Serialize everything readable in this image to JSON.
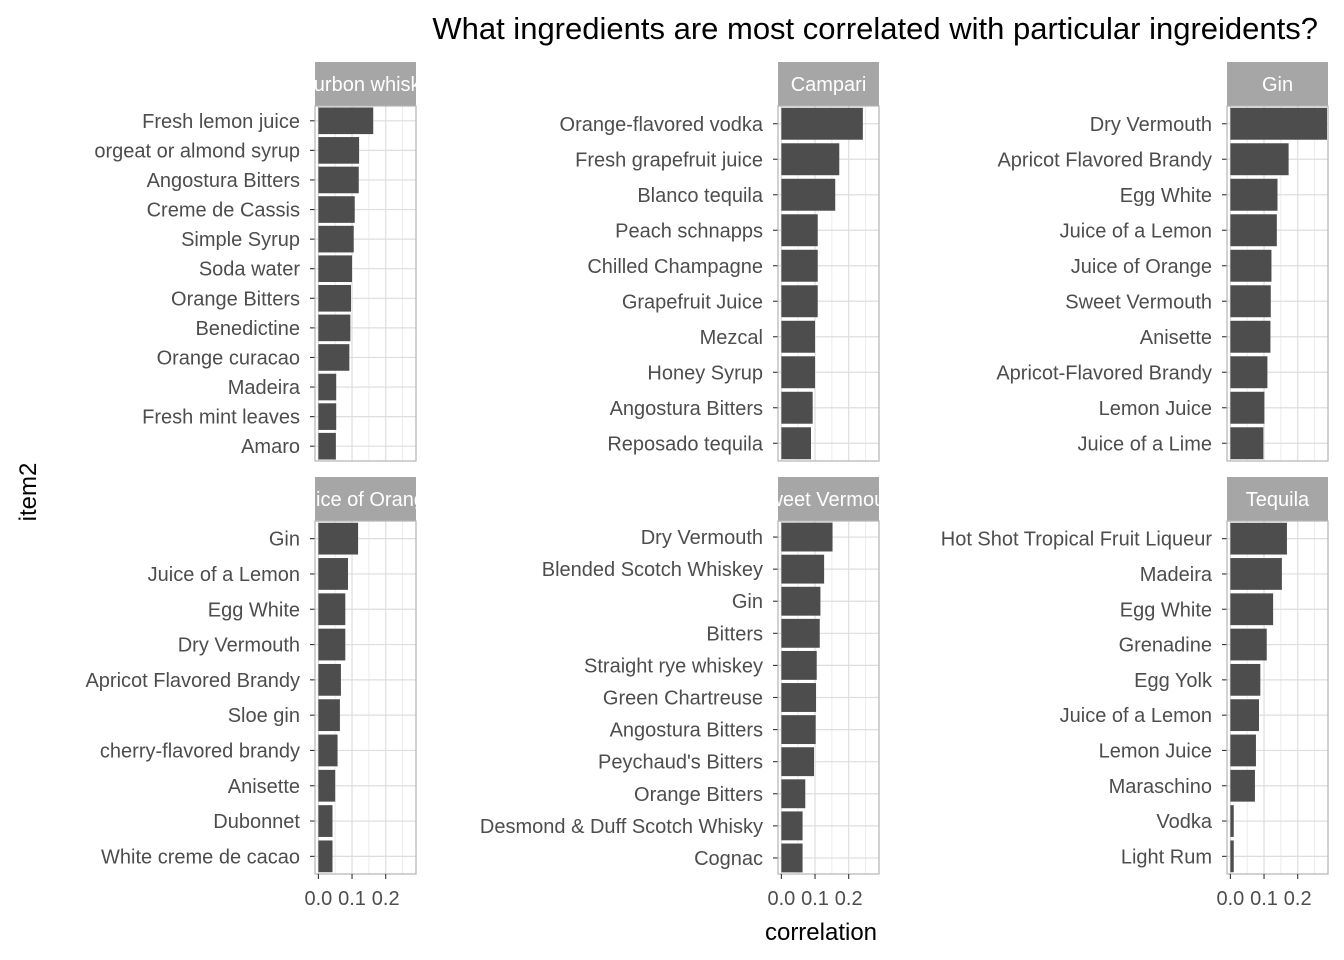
{
  "title": "What ingredients are most correlated with particular ingreidents?",
  "xlabel": "correlation",
  "ylabel": "item2",
  "chart_data": {
    "type": "bar",
    "orientation": "horizontal",
    "title": "What ingredients are most correlated with particular ingreidents?",
    "xlabel": "correlation",
    "ylabel": "item2",
    "xlim": [
      -0.01,
      0.29
    ],
    "x_ticks": [
      0.0,
      0.1,
      0.2
    ],
    "x_tick_labels": [
      "0.0",
      "0.1",
      "0.2"
    ],
    "grid": true,
    "facets": [
      {
        "name": "Bourbon whiskey",
        "strip_label": "Bourbon whiskey",
        "categories": [
          "Fresh lemon juice",
          "orgeat or almond syrup",
          "Angostura Bitters",
          "Creme de Cassis",
          "Simple Syrup",
          "Soda water",
          "Orange Bitters",
          "Benedictine",
          "Orange curacao",
          "Madeira",
          "Fresh mint leaves",
          "Amaro"
        ],
        "values": [
          0.163,
          0.121,
          0.12,
          0.108,
          0.105,
          0.1,
          0.097,
          0.095,
          0.092,
          0.053,
          0.053,
          0.052
        ]
      },
      {
        "name": "Campari",
        "strip_label": "Campari",
        "categories": [
          "Orange-flavored vodka",
          "Fresh grapefruit juice",
          "Blanco tequila",
          "Peach schnapps",
          "Chilled Champagne",
          "Grapefruit Juice",
          "Mezcal",
          "Honey Syrup",
          "Angostura Bitters",
          "Reposado tequila"
        ],
        "values": [
          0.242,
          0.172,
          0.16,
          0.108,
          0.108,
          0.108,
          0.1,
          0.1,
          0.093,
          0.088
        ]
      },
      {
        "name": "Gin",
        "strip_label": "Gin",
        "categories": [
          "Dry Vermouth",
          "Apricot Flavored Brandy",
          "Egg White",
          "Juice of a Lemon",
          "Juice of Orange",
          "Sweet Vermouth",
          "Anisette",
          "Apricot-Flavored Brandy",
          "Lemon Juice",
          "Juice of a Lime"
        ],
        "values": [
          0.287,
          0.173,
          0.14,
          0.138,
          0.122,
          0.12,
          0.119,
          0.11,
          0.101,
          0.098
        ]
      },
      {
        "name": "Juice of Orange",
        "strip_label": "Juice of Orange",
        "categories": [
          "Gin",
          "Juice of a Lemon",
          "Egg White",
          "Dry Vermouth",
          "Apricot Flavored Brandy",
          "Sloe gin",
          "cherry-flavored brandy",
          "Anisette",
          "Dubonnet",
          "White creme de cacao"
        ],
        "values": [
          0.118,
          0.088,
          0.08,
          0.08,
          0.067,
          0.064,
          0.057,
          0.05,
          0.042,
          0.042
        ]
      },
      {
        "name": "Sweet Vermouth",
        "strip_label": "Sweet Vermouth",
        "categories": [
          "Dry Vermouth",
          "Blended Scotch Whiskey",
          "Gin",
          "Bitters",
          "Straight rye whiskey",
          "Green Chartreuse",
          "Angostura Bitters",
          "Peychaud's Bitters",
          "Orange Bitters",
          "Desmond & Duff Scotch Whisky",
          "Cognac"
        ],
        "values": [
          0.152,
          0.127,
          0.116,
          0.114,
          0.105,
          0.103,
          0.102,
          0.097,
          0.071,
          0.063,
          0.063
        ]
      },
      {
        "name": "Tequila",
        "strip_label": "Tequila",
        "categories": [
          "Hot Shot Tropical Fruit Liqueur",
          "Madeira",
          "Egg White",
          "Grenadine",
          "Egg Yolk",
          "Juice of a Lemon",
          "Lemon Juice",
          "Maraschino",
          "Vodka",
          "Light Rum"
        ],
        "values": [
          0.168,
          0.153,
          0.127,
          0.108,
          0.089,
          0.085,
          0.076,
          0.073,
          0.01,
          0.01
        ]
      }
    ]
  }
}
